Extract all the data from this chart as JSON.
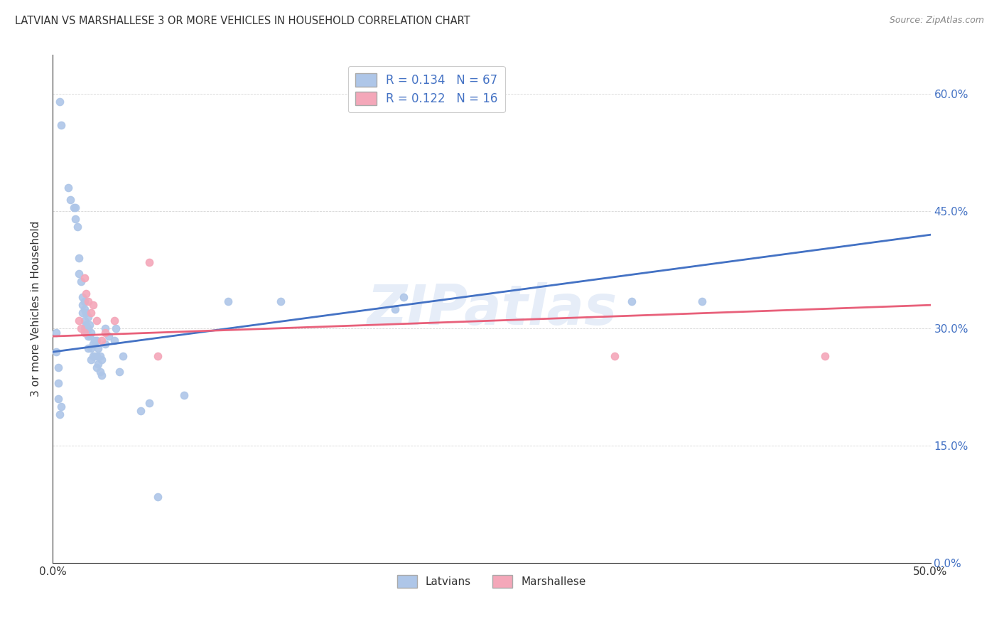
{
  "title": "LATVIAN VS MARSHALLESE 3 OR MORE VEHICLES IN HOUSEHOLD CORRELATION CHART",
  "source": "Source: ZipAtlas.com",
  "ylabel": "3 or more Vehicles in Household",
  "watermark": "ZIPatlas",
  "legend_latvian": "R = 0.134   N = 67",
  "legend_marshallese": "R = 0.122   N = 16",
  "latvian_color": "#aec6e8",
  "marshallese_color": "#f4a7b9",
  "trend_latvian_color": "#4472c4",
  "trend_marshallese_color": "#e8607a",
  "xlim": [
    0.0,
    0.5
  ],
  "ylim": [
    0.0,
    0.65
  ],
  "xticks": [
    0.0,
    0.05,
    0.1,
    0.15,
    0.2,
    0.25,
    0.3,
    0.35,
    0.4,
    0.45,
    0.5
  ],
  "yticks": [
    0.0,
    0.15,
    0.3,
    0.45,
    0.6
  ],
  "ytick_labels": [
    "0.0%",
    "15.0%",
    "30.0%",
    "45.0%",
    "60.0%"
  ],
  "xtick_labels": [
    "0.0%",
    "",
    "",
    "",
    "",
    "",
    "",
    "",
    "",
    "",
    "50.0%"
  ],
  "latvian_x": [
    0.004,
    0.005,
    0.009,
    0.01,
    0.012,
    0.013,
    0.013,
    0.014,
    0.015,
    0.015,
    0.016,
    0.017,
    0.017,
    0.017,
    0.018,
    0.018,
    0.018,
    0.018,
    0.019,
    0.019,
    0.019,
    0.02,
    0.02,
    0.02,
    0.02,
    0.021,
    0.021,
    0.022,
    0.022,
    0.022,
    0.023,
    0.023,
    0.024,
    0.024,
    0.025,
    0.025,
    0.025,
    0.026,
    0.026,
    0.027,
    0.027,
    0.028,
    0.028,
    0.03,
    0.03,
    0.032,
    0.035,
    0.036,
    0.038,
    0.04,
    0.05,
    0.055,
    0.06,
    0.075,
    0.1,
    0.13,
    0.195,
    0.2,
    0.33,
    0.37,
    0.002,
    0.002,
    0.003,
    0.003,
    0.003,
    0.004,
    0.005
  ],
  "latvian_y": [
    0.59,
    0.56,
    0.48,
    0.465,
    0.455,
    0.455,
    0.44,
    0.43,
    0.39,
    0.37,
    0.36,
    0.34,
    0.33,
    0.32,
    0.335,
    0.325,
    0.31,
    0.3,
    0.32,
    0.305,
    0.295,
    0.315,
    0.3,
    0.29,
    0.275,
    0.305,
    0.29,
    0.295,
    0.275,
    0.26,
    0.28,
    0.265,
    0.285,
    0.265,
    0.285,
    0.265,
    0.25,
    0.275,
    0.255,
    0.265,
    0.245,
    0.26,
    0.24,
    0.3,
    0.28,
    0.29,
    0.285,
    0.3,
    0.245,
    0.265,
    0.195,
    0.205,
    0.085,
    0.215,
    0.335,
    0.335,
    0.325,
    0.34,
    0.335,
    0.335,
    0.295,
    0.27,
    0.25,
    0.23,
    0.21,
    0.19,
    0.2
  ],
  "marshallese_x": [
    0.018,
    0.019,
    0.02,
    0.022,
    0.023,
    0.025,
    0.028,
    0.03,
    0.035,
    0.055,
    0.015,
    0.016,
    0.018,
    0.06,
    0.32,
    0.44
  ],
  "marshallese_y": [
    0.365,
    0.345,
    0.335,
    0.32,
    0.33,
    0.31,
    0.285,
    0.295,
    0.31,
    0.385,
    0.31,
    0.3,
    0.295,
    0.265,
    0.265,
    0.265
  ],
  "trend_latvian_x0": 0.0,
  "trend_latvian_x1": 0.5,
  "trend_latvian_y0": 0.27,
  "trend_latvian_y1": 0.42,
  "trend_marshallese_x0": 0.0,
  "trend_marshallese_x1": 0.5,
  "trend_marshallese_y0": 0.29,
  "trend_marshallese_y1": 0.33
}
